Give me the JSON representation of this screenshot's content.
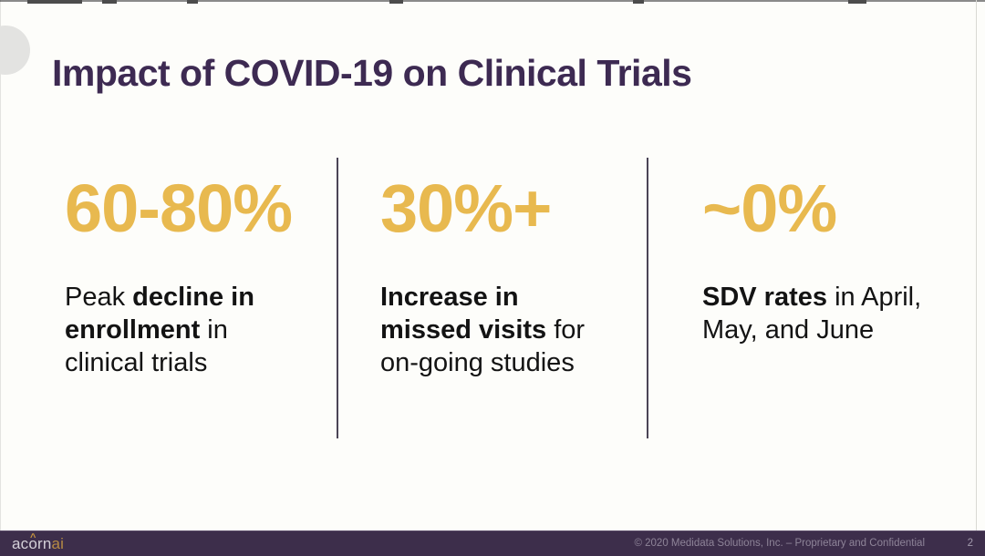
{
  "slide": {
    "title": "Impact of COVID-19 on Clinical Trials",
    "title_color": "#3d2a52",
    "accent_color": "#e8b94f",
    "stats": [
      {
        "value": "60-80%",
        "segments": [
          {
            "text": "Peak "
          },
          {
            "text": "decline in",
            "bold": true
          },
          {
            "br": true
          },
          {
            "text": "enrollment",
            "bold": true
          },
          {
            "text": " in"
          },
          {
            "br": true
          },
          {
            "text": "clinical trials"
          }
        ]
      },
      {
        "value": "30%+",
        "segments": [
          {
            "text": "Increase in",
            "bold": true
          },
          {
            "br": true
          },
          {
            "text": "missed visits",
            "bold": true
          },
          {
            "text": " for"
          },
          {
            "br": true
          },
          {
            "text": "on-going studies"
          }
        ]
      },
      {
        "value": "~0%",
        "segments": [
          {
            "text": "SDV rates",
            "bold": true
          },
          {
            "text": " in April,"
          },
          {
            "br": true
          },
          {
            "text": "May, and June"
          }
        ]
      }
    ]
  },
  "footer": {
    "bar_color": "#3d2e4b",
    "logo": {
      "word": "acorn",
      "caret": "^",
      "suffix": "ai"
    },
    "copyright": "© 2020 Medidata Solutions, Inc. – Proprietary and Confidential",
    "page_number": "2"
  }
}
